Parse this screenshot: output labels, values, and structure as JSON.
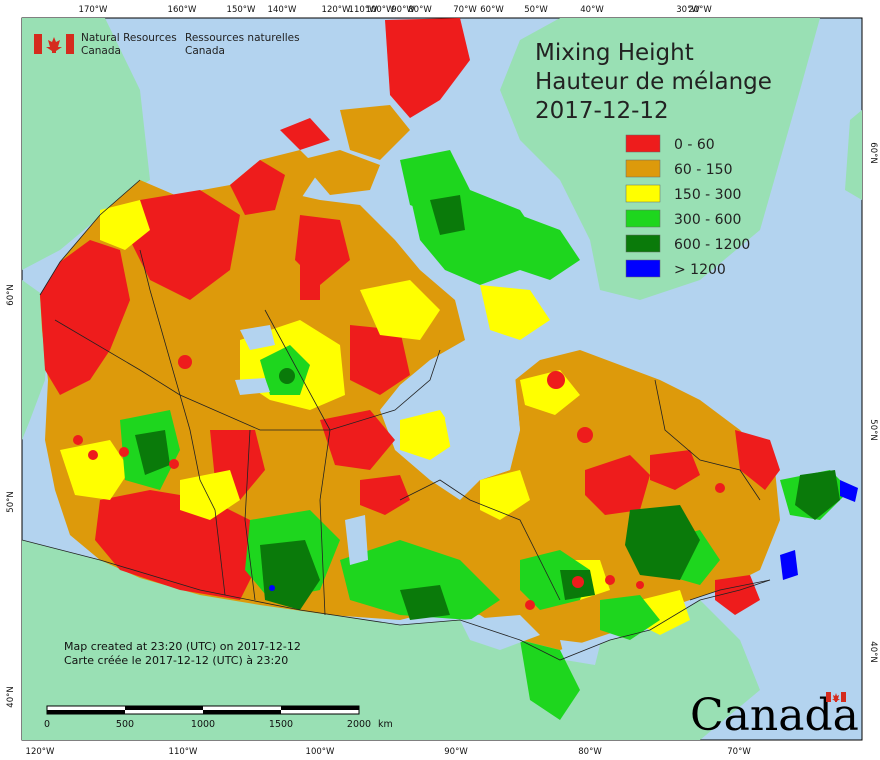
{
  "agency": {
    "en_line1": "Natural Resources",
    "en_line2": "Canada",
    "fr_line1": "Ressources naturelles",
    "fr_line2": "Canada"
  },
  "title": {
    "line1": "Mixing Height",
    "line2": "Hauteur de mélange",
    "date": "2017-12-12"
  },
  "legend": {
    "items": [
      {
        "label": "0 - 60",
        "color": "#ee1c1c"
      },
      {
        "label": "60 - 150",
        "color": "#dd9a0b"
      },
      {
        "label": "150 - 300",
        "color": "#ffff00"
      },
      {
        "label": "300 - 600",
        "color": "#1ed61e"
      },
      {
        "label": "600 - 1200",
        "color": "#0a7a0a"
      },
      {
        "label": "> 1200",
        "color": "#0000ff"
      }
    ]
  },
  "colors": {
    "ocean": "#b3d3ef",
    "land_outside": "#99e0b4",
    "border": "#222222"
  },
  "top_axis": [
    "170°W",
    "160°W",
    "150°W",
    "140°W",
    "120°W",
    "110°W",
    "100°W",
    "90°W",
    "80°W",
    "70°W",
    "60°W",
    "50°W",
    "40°W",
    "30°W",
    "20°W"
  ],
  "bottom_axis": [
    "120°W",
    "110°W",
    "100°W",
    "90°W",
    "80°W",
    "70°W"
  ],
  "left_axis": [
    "60°N",
    "50°N",
    "40°N"
  ],
  "right_axis": [
    "60°N",
    "50°N",
    "40°N"
  ],
  "scalebar": {
    "ticks": [
      "0",
      "500",
      "1000",
      "1500",
      "2000"
    ],
    "unit": "km"
  },
  "credit": {
    "en": "Map created at 23:20 (UTC) on 2017-12-12",
    "fr": "Carte créée le 2017-12-12 (UTC) à 23:20"
  },
  "wordmark": "Canada"
}
